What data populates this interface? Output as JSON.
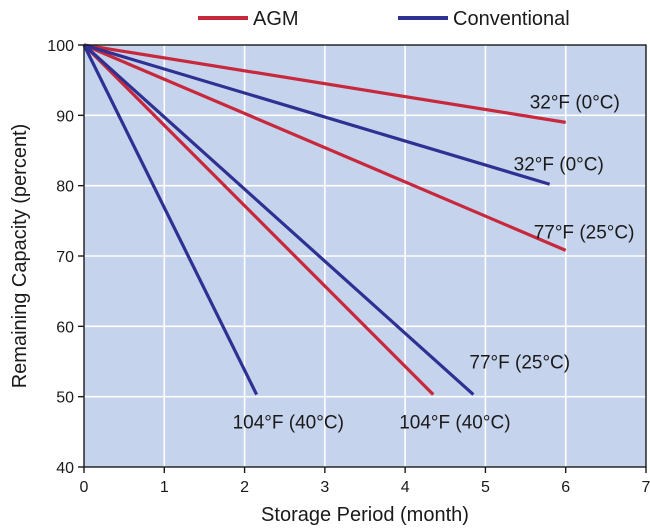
{
  "chart_data": {
    "type": "line",
    "title": "",
    "xlabel": "Storage Period (month)",
    "ylabel": "Remaining Capacity (percent)",
    "xlim": [
      0,
      7
    ],
    "ylim": [
      40,
      100
    ],
    "xticks": [
      "0",
      "1",
      "2",
      "3",
      "4",
      "5",
      "6",
      "7"
    ],
    "yticks": [
      "40",
      "50",
      "60",
      "70",
      "80",
      "90",
      "100"
    ],
    "grid": true,
    "legend_position": "top-center",
    "legend": [
      {
        "name": "AGM",
        "color": "#c8283c"
      },
      {
        "name": "Conventional",
        "color": "#2e3192"
      }
    ],
    "plot_background": "#c5d3ec",
    "series": [
      {
        "group": "AGM",
        "label": "32°F (0°C)",
        "x": [
          0,
          6.0
        ],
        "y": [
          100,
          89
        ]
      },
      {
        "group": "AGM",
        "label": "77°F (25°C)",
        "x": [
          0,
          6.0
        ],
        "y": [
          100,
          70.8
        ]
      },
      {
        "group": "AGM",
        "label": "104°F (40°C)",
        "x": [
          0,
          4.35
        ],
        "y": [
          100,
          50.3
        ]
      },
      {
        "group": "Conventional",
        "label": "32°F (0°C)",
        "x": [
          0,
          5.8
        ],
        "y": [
          100,
          80.2
        ]
      },
      {
        "group": "Conventional",
        "label": "77°F (25°C)",
        "x": [
          0,
          4.85
        ],
        "y": [
          100,
          50.3
        ]
      },
      {
        "group": "Conventional",
        "label": "104°F (40°C)",
        "x": [
          0,
          2.15
        ],
        "y": [
          100,
          50.3
        ]
      }
    ]
  }
}
